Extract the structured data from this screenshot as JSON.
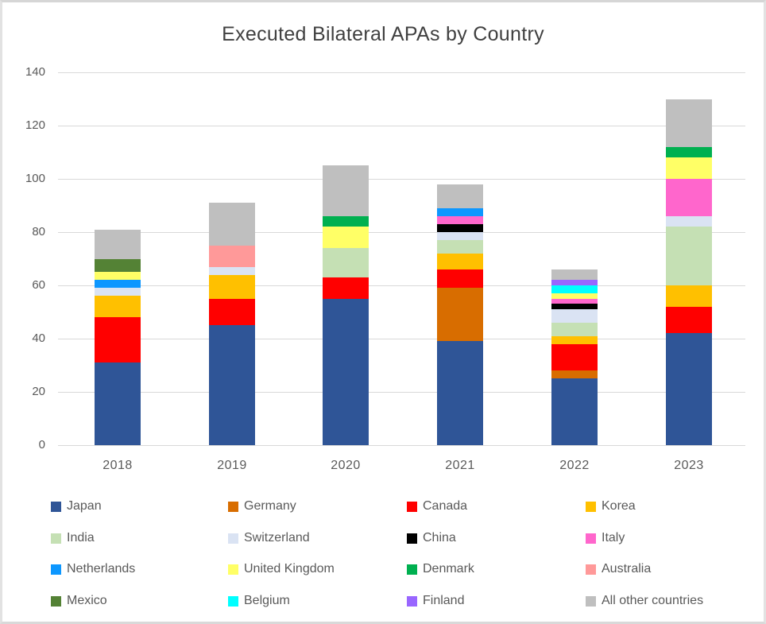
{
  "title": "Executed Bilateral APAs by Country",
  "style": {
    "title_color": "#404040",
    "tick_color": "#595959",
    "grid_color": "#D9D9D9",
    "background": "#FFFFFF"
  },
  "chart_data": {
    "type": "bar",
    "stacked": true,
    "title": "Executed Bilateral APAs by Country",
    "xlabel": "",
    "ylabel": "",
    "ylim": [
      0,
      140
    ],
    "yticks": [
      0,
      20,
      40,
      60,
      80,
      100,
      120,
      140
    ],
    "grid": true,
    "legend_position": "bottom",
    "categories": [
      "2018",
      "2019",
      "2020",
      "2021",
      "2022",
      "2023"
    ],
    "series": [
      {
        "name": "Japan",
        "color": "#2F5597",
        "values": [
          31,
          45,
          55,
          39,
          25,
          42
        ]
      },
      {
        "name": "Germany",
        "color": "#D86D00",
        "values": [
          0,
          0,
          0,
          20,
          3,
          0
        ]
      },
      {
        "name": "Canada",
        "color": "#FF0000",
        "values": [
          17,
          10,
          8,
          7,
          10,
          10
        ]
      },
      {
        "name": "Korea",
        "color": "#FFC000",
        "values": [
          8,
          9,
          0,
          6,
          3,
          8
        ]
      },
      {
        "name": "India",
        "color": "#C5E0B4",
        "values": [
          0,
          0,
          11,
          5,
          5,
          22
        ]
      },
      {
        "name": "Switzerland",
        "color": "#DAE3F3",
        "values": [
          3,
          3,
          0,
          3,
          5,
          4
        ]
      },
      {
        "name": "China",
        "color": "#000000",
        "values": [
          0,
          0,
          0,
          3,
          2,
          0
        ]
      },
      {
        "name": "Italy",
        "color": "#FF66CC",
        "values": [
          0,
          0,
          0,
          3,
          2,
          14
        ]
      },
      {
        "name": "Netherlands",
        "color": "#0D97FF",
        "values": [
          3,
          0,
          0,
          3,
          0,
          0
        ]
      },
      {
        "name": "United Kingdom",
        "color": "#FFFF66",
        "values": [
          3,
          0,
          8,
          0,
          2,
          8
        ]
      },
      {
        "name": "Denmark",
        "color": "#00B050",
        "values": [
          0,
          0,
          4,
          0,
          0,
          4
        ]
      },
      {
        "name": "Australia",
        "color": "#FF9999",
        "values": [
          0,
          8,
          0,
          0,
          0,
          0
        ]
      },
      {
        "name": "Mexico",
        "color": "#548235",
        "values": [
          5,
          0,
          0,
          0,
          0,
          0
        ]
      },
      {
        "name": "Belgium",
        "color": "#00FFFF",
        "values": [
          0,
          0,
          0,
          0,
          3,
          0
        ]
      },
      {
        "name": "Finland",
        "color": "#9966FF",
        "values": [
          0,
          0,
          0,
          0,
          2,
          0
        ]
      },
      {
        "name": "All other countries",
        "color": "#BFBFBF",
        "values": [
          11,
          16,
          19,
          9,
          4,
          18
        ]
      }
    ]
  }
}
